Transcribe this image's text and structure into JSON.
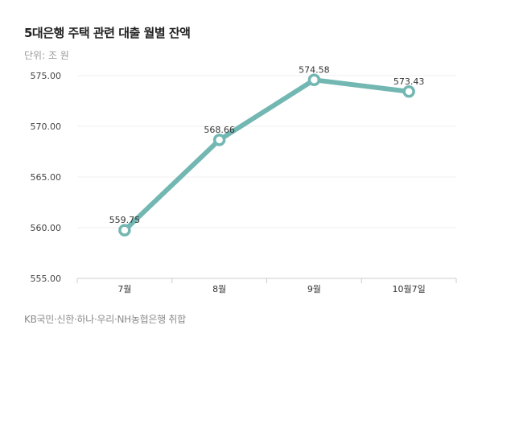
{
  "title": "5대은행 주택 관련 대출 월별 잔액",
  "unit_label": "단위: 조 원",
  "source": "KB국민·신한·하나·우리·NH농협은행 취합",
  "colors": {
    "line": "#72b7b2",
    "grid": "#efefef",
    "axis": "#cccccc"
  },
  "chart_data": {
    "type": "line",
    "categories": [
      "7월",
      "8월",
      "9월",
      "10월7일"
    ],
    "series": [
      {
        "values": [
          559.75,
          568.66,
          574.58,
          573.43
        ]
      }
    ],
    "data_labels": [
      "559.75",
      "568.66",
      "574.58",
      "573.43"
    ],
    "ylim": [
      555,
      575
    ],
    "yticks": [
      "555.00",
      "560.00",
      "565.00",
      "570.00",
      "575.00"
    ],
    "grid": true,
    "title": "5대은행 주택 관련 대출 월별 잔액",
    "xlabel": "",
    "ylabel": ""
  }
}
